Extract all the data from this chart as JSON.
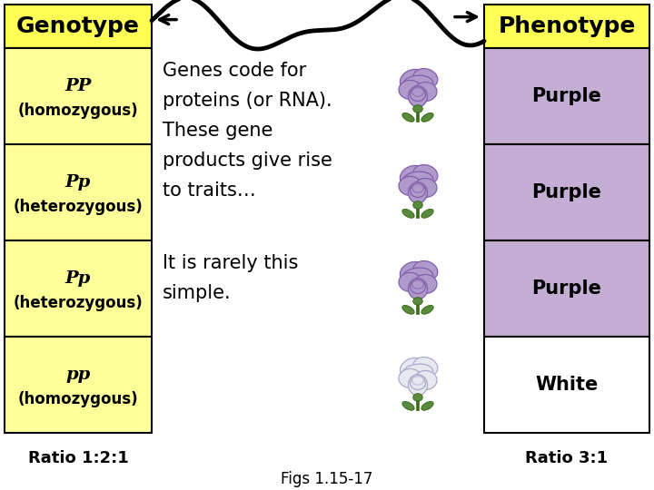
{
  "genotype_title": "Genotype",
  "phenotype_title": "Phenotype",
  "genotype_bg": "#ffff99",
  "phenotype_purple_bg": "#c4aed4",
  "phenotype_white_bg": "#ffffff",
  "title_bg": "#ffff55",
  "genotype_rows": [
    {
      "label1": "PP",
      "label2": "(homozygous)"
    },
    {
      "label1": "Pp",
      "label2": "(heterozygous)"
    },
    {
      "label1": "Pp",
      "label2": "(heterozygous)"
    },
    {
      "label1": "pp",
      "label2": "(homozygous)"
    }
  ],
  "phenotype_rows": [
    "Purple",
    "Purple",
    "Purple",
    "White"
  ],
  "phenotype_colors": [
    "#c4aed4",
    "#c4aed4",
    "#c4aed4",
    "#ffffff"
  ],
  "main_text_lines": [
    "Genes code for",
    "proteins (or RNA).",
    "These gene",
    "products give rise",
    "to traits…"
  ],
  "sub_text_lines": [
    "It is rarely this",
    "simple."
  ],
  "ratio_left": "Ratio 1:2:1",
  "ratio_right": "Ratio 3:1",
  "fig_label": "Figs 1.15-17",
  "fig_width": 7.2,
  "fig_height": 5.4,
  "dpi": 100
}
